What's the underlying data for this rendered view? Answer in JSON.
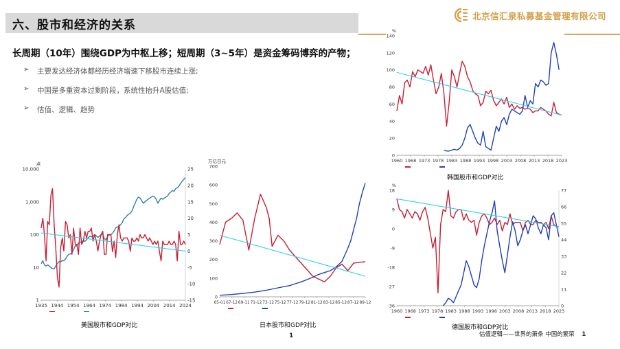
{
  "slide": {
    "title": "六、股市和经济的关系",
    "company": "北京信汇泉私募基金管理有限公司",
    "headline": "长周期（10年）围绕GDP为中枢上移；短周期（3~5年）是资金筹码博弈的产物；",
    "bullets": [
      "主要发达经济体都经历经济增速下移股市连续上涨;",
      "中国是多重资本过剩阶段，系统性抬升A股估值;",
      "估值、逻辑、趋势"
    ],
    "bullet_marker": "➢",
    "page_number": "1",
    "footer": "估值逻辑——世界的萧条 中国的繁荣",
    "footer_page": "1"
  },
  "colors": {
    "gold": "#d4a04a",
    "series_red": "#c81e32",
    "series_blue": "#1f3fb5",
    "series_teal": "#2f7fa6",
    "trend_cyan": "#26d3f0"
  },
  "chart_data": [
    {
      "id": "korea",
      "type": "line",
      "caption": "韩国股市和GDP对比",
      "unit_left": "%",
      "x_ticks": [
        "1960",
        "1968",
        "1973",
        "1978",
        "1983",
        "1988",
        "1993",
        "1998",
        "2003",
        "2008",
        "2013",
        "2018",
        "2023"
      ],
      "y_left_ticks": [
        "140",
        "120",
        "100",
        "80",
        "60",
        "40",
        "20",
        "0"
      ],
      "ylim_left": [
        0,
        140
      ],
      "series": [
        {
          "color": "red",
          "x_start": 1960,
          "x_step": 1,
          "values": [
            52,
            70,
            60,
            85,
            88,
            80,
            98,
            92,
            100,
            98,
            96,
            104,
            94,
            106,
            88,
            72,
            80,
            96,
            72,
            34,
            62,
            100,
            92,
            80,
            96,
            110,
            104,
            92,
            86,
            76,
            72,
            70,
            58,
            62,
            75,
            72,
            76,
            64,
            58,
            62,
            66,
            60,
            68,
            56,
            60,
            54,
            58,
            55,
            56,
            54,
            55,
            54,
            50,
            52,
            52,
            56,
            54,
            52,
            48,
            46,
            62,
            50,
            48,
            47
          ]
        },
        {
          "color": "blue",
          "x_start": 1978,
          "x_step": 1,
          "values": [
            6,
            5,
            5,
            6,
            7,
            6,
            8,
            12,
            20,
            32,
            36,
            28,
            20,
            14,
            12,
            28,
            10,
            8,
            6,
            20,
            34,
            28,
            40,
            44,
            36,
            48,
            54,
            52,
            50,
            48,
            52,
            70,
            56,
            64,
            60,
            84,
            80,
            88,
            86,
            82,
            84,
            120,
            132,
            118,
            100
          ]
        },
        {
          "color": "cyan",
          "kind": "trend",
          "x": [
            1960,
            2023
          ],
          "values": [
            97,
            47
          ]
        }
      ]
    },
    {
      "id": "usa",
      "type": "line",
      "caption": "美国股市和GDP对比",
      "unit_left": "点",
      "scale_left": "log",
      "x_ticks": [
        "1935",
        "1944",
        "1954",
        "1964",
        "1974",
        "1984",
        "1994",
        "2004",
        "2014",
        "2024"
      ],
      "y_left_ticks": [
        "10,000",
        "1,000",
        "100",
        "10",
        "1"
      ],
      "y_right_ticks": [
        "25",
        "20",
        "15",
        "10",
        "5",
        "0",
        "-5",
        "-10",
        "-15"
      ],
      "ylim_left": [
        1,
        10000
      ],
      "ylim_right": [
        -15,
        25
      ],
      "series": [
        {
          "color": "teal",
          "axis": "left",
          "x_start": 1935,
          "x_step": 1,
          "values": [
            13,
            16,
            12,
            11,
            12,
            11,
            10,
            9,
            9,
            11,
            13,
            15,
            15,
            16,
            16,
            18,
            22,
            25,
            26,
            28,
            35,
            46,
            45,
            55,
            58,
            60,
            66,
            62,
            70,
            80,
            90,
            85,
            90,
            100,
            92,
            82,
            90,
            100,
            105,
            75,
            70,
            90,
            98,
            100,
            110,
            130,
            160,
            170,
            180,
            200,
            230,
            300,
            330,
            380,
            420,
            450,
            520,
            700,
            900,
            1200,
            1400,
            1300,
            1100,
            900,
            1000,
            1100,
            1200,
            1300,
            1400,
            1500,
            1400,
            1200,
            900,
            1100,
            1300,
            1200,
            1300,
            1400,
            1500,
            1800,
            2000,
            2200,
            2100,
            2500,
            2700,
            3000,
            3600,
            4200,
            4800,
            5500
          ]
        },
        {
          "color": "red",
          "axis": "right",
          "x_start": 1935,
          "x_step": 1,
          "values": [
            7,
            10,
            5,
            -3,
            9,
            8,
            17,
            19,
            8,
            1,
            -8,
            -11,
            1,
            4,
            0,
            9,
            8,
            4,
            5,
            -1,
            7,
            2,
            2,
            -1,
            7,
            2,
            3,
            6,
            4,
            6,
            6,
            7,
            3,
            5,
            3,
            0,
            3,
            5,
            6,
            -1,
            -1,
            5,
            5,
            5,
            -0.2,
            3,
            -2,
            5,
            8,
            4,
            3,
            4,
            4,
            4,
            3,
            -0.1,
            4,
            3,
            3,
            4,
            3,
            5,
            4,
            4,
            5,
            4,
            3,
            4,
            3,
            2,
            3,
            2,
            3,
            -0.1,
            -3,
            3,
            2,
            2,
            2,
            3,
            2,
            2,
            3,
            2,
            -3,
            6,
            2,
            2,
            3,
            2
          ]
        },
        {
          "color": "cyan",
          "kind": "trend",
          "axis": "right",
          "x": [
            1935,
            2024
          ],
          "values": [
            5.5,
            0
          ]
        }
      ]
    },
    {
      "id": "japan",
      "type": "line",
      "caption": "日本股市和GDP对比",
      "unit_left": "万亿日元",
      "x_ticks": [
        "65-01",
        "67-12",
        "69-11",
        "71-12",
        "73-12",
        "75-12",
        "77-12",
        "79-12",
        "81-12",
        "83-12",
        "85-12",
        "87-12",
        "89-12"
      ],
      "y_left_ticks": [
        "700",
        "600",
        "500",
        "400",
        "300",
        "200",
        "100",
        "0"
      ],
      "ylim_left": [
        0,
        700
      ],
      "series": [
        {
          "color": "red",
          "axis": "left",
          "x": [
            0,
            2,
            4,
            6,
            8,
            10,
            12,
            14,
            16,
            17,
            18,
            20,
            22,
            24,
            26,
            28,
            30,
            32,
            34,
            36,
            38,
            40,
            42,
            44,
            46,
            48,
            50
          ],
          "values": [
            280,
            400,
            420,
            450,
            410,
            250,
            420,
            550,
            480,
            420,
            270,
            330,
            300,
            250,
            215,
            180,
            145,
            110,
            95,
            80,
            110,
            155,
            175,
            140,
            180,
            185,
            188
          ]
        },
        {
          "color": "blue",
          "axis": "left",
          "x": [
            0,
            4,
            8,
            12,
            16,
            20,
            24,
            26,
            28,
            30,
            32,
            34,
            36,
            38,
            40,
            42,
            44,
            45,
            46,
            47,
            48,
            49,
            50
          ],
          "values": [
            8,
            12,
            18,
            25,
            35,
            48,
            60,
            70,
            80,
            92,
            105,
            120,
            130,
            140,
            160,
            190,
            260,
            300,
            360,
            420,
            500,
            560,
            610
          ]
        },
        {
          "color": "cyan",
          "kind": "trend",
          "axis": "left",
          "x": [
            0,
            50
          ],
          "values": [
            330,
            110
          ]
        }
      ]
    },
    {
      "id": "germany",
      "type": "line",
      "caption": "德国股市和GDP对比",
      "unit_left": "%",
      "x_ticks": [
        "1960",
        "1968",
        "1973",
        "1978",
        "1983",
        "1988",
        "1993",
        "1998",
        "2003",
        "2008",
        "2013",
        "2018",
        "2023"
      ],
      "y_left_ticks": [
        "18",
        "9",
        "0",
        "-9",
        "-18",
        "-27",
        "-36"
      ],
      "y_right_ticks": [
        "77",
        "66",
        "55",
        "44",
        "33",
        "22",
        "11",
        "0"
      ],
      "ylim_left": [
        -36,
        18
      ],
      "ylim_right": [
        0,
        77
      ],
      "series": [
        {
          "color": "red",
          "axis": "left",
          "x_start": 1960,
          "x_step": 1,
          "values": [
            14,
            9,
            8,
            5,
            9,
            7,
            5,
            8,
            7,
            4,
            8,
            10,
            5,
            -2,
            -9,
            -4,
            -30,
            2,
            9,
            8,
            18,
            6,
            5,
            8,
            9,
            9,
            4,
            7,
            4,
            3,
            4,
            -3,
            3,
            6,
            7,
            5,
            2,
            3,
            5,
            2,
            4,
            -1,
            3,
            2,
            7,
            2,
            3,
            3,
            3,
            -1,
            3,
            4,
            2,
            2,
            4,
            3,
            3,
            2,
            3,
            0,
            6,
            2,
            1,
            1
          ]
        },
        {
          "color": "blue",
          "axis": "right",
          "x_start": 1978,
          "x_step": 1,
          "values": [
            0,
            2,
            5,
            4,
            2,
            6,
            10,
            14,
            22,
            30,
            26,
            20,
            14,
            12,
            18,
            30,
            40,
            48,
            56,
            62,
            70,
            50,
            40,
            30,
            22,
            34,
            46,
            56,
            50,
            40,
            44,
            50,
            54,
            48,
            54,
            60,
            58,
            52,
            48,
            54,
            52,
            44,
            60,
            62,
            54,
            46
          ]
        },
        {
          "color": "cyan",
          "kind": "trend",
          "axis": "left",
          "x": [
            1960,
            2023
          ],
          "values": [
            14,
            1
          ]
        }
      ]
    }
  ]
}
